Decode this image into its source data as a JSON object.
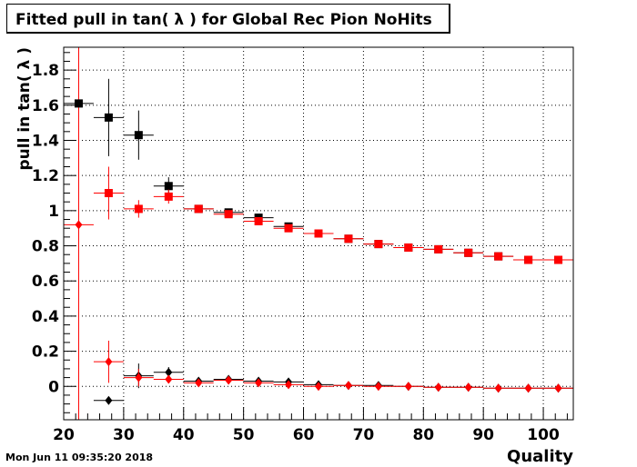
{
  "title": "Fitted pull in tan( λ ) for Global Rec Pion NoHits",
  "timestamp": "Mon Jun 11 09:35:20 2018",
  "chart_data": {
    "type": "scatter",
    "title": "Fitted pull in tan( λ ) for Global Rec Pion NoHits",
    "xlabel": "Quality",
    "ylabel": "pull in tan( λ )",
    "xlim": [
      20,
      105
    ],
    "ylim": [
      -0.19,
      1.93
    ],
    "xticks": [
      20,
      30,
      40,
      50,
      60,
      70,
      80,
      90,
      100
    ],
    "yticks": [
      0,
      0.2,
      0.4,
      0.6,
      0.8,
      1,
      1.2,
      1.4,
      1.6,
      1.8
    ],
    "ytick_labels": [
      "0",
      "0.2",
      "0.4",
      "0.6",
      "0.8",
      "1",
      "1.2",
      "1.4",
      "1.6",
      "1.8"
    ],
    "grid": true,
    "vertical_line": {
      "x": 22.5,
      "color": "#ff0000"
    },
    "bin_halfwidth": 2.5,
    "series": [
      {
        "marker": "square",
        "color": "#000000",
        "points": [
          {
            "x": 22.5,
            "y": 1.61,
            "err": 0
          },
          {
            "x": 27.5,
            "y": 1.53,
            "err": 0.22
          },
          {
            "x": 32.5,
            "y": 1.43,
            "err": 0.14
          },
          {
            "x": 37.5,
            "y": 1.14,
            "err": 0.05
          },
          {
            "x": 42.5,
            "y": 1.01,
            "err": 0.01
          },
          {
            "x": 47.5,
            "y": 0.99,
            "err": 0.01
          },
          {
            "x": 52.5,
            "y": 0.96,
            "err": 0.01
          },
          {
            "x": 57.5,
            "y": 0.91,
            "err": 0.01
          },
          {
            "x": 62.5,
            "y": 0.87,
            "err": 0.01
          },
          {
            "x": 67.5,
            "y": 0.84,
            "err": 0.01
          },
          {
            "x": 72.5,
            "y": 0.81,
            "err": 0.01
          },
          {
            "x": 77.5,
            "y": 0.79,
            "err": 0.01
          },
          {
            "x": 82.5,
            "y": 0.78,
            "err": 0.01
          },
          {
            "x": 87.5,
            "y": 0.76,
            "err": 0.01
          },
          {
            "x": 92.5,
            "y": 0.74,
            "err": 0.01
          },
          {
            "x": 97.5,
            "y": 0.72,
            "err": 0.01
          },
          {
            "x": 102.5,
            "y": 0.72,
            "err": 0.01
          }
        ]
      },
      {
        "marker": "square",
        "color": "#ff0000",
        "points": [
          {
            "x": 27.5,
            "y": 1.1,
            "err": 0.15
          },
          {
            "x": 32.5,
            "y": 1.01,
            "err": 0.05
          },
          {
            "x": 37.5,
            "y": 1.08,
            "err": 0.04
          },
          {
            "x": 42.5,
            "y": 1.01,
            "err": 0.01
          },
          {
            "x": 47.5,
            "y": 0.98,
            "err": 0.01
          },
          {
            "x": 52.5,
            "y": 0.94,
            "err": 0.01
          },
          {
            "x": 57.5,
            "y": 0.9,
            "err": 0.01
          },
          {
            "x": 62.5,
            "y": 0.87,
            "err": 0.01
          },
          {
            "x": 67.5,
            "y": 0.84,
            "err": 0.01
          },
          {
            "x": 72.5,
            "y": 0.81,
            "err": 0.01
          },
          {
            "x": 77.5,
            "y": 0.79,
            "err": 0.01
          },
          {
            "x": 82.5,
            "y": 0.78,
            "err": 0.01
          },
          {
            "x": 87.5,
            "y": 0.76,
            "err": 0.01
          },
          {
            "x": 92.5,
            "y": 0.74,
            "err": 0.01
          },
          {
            "x": 97.5,
            "y": 0.72,
            "err": 0.01
          },
          {
            "x": 102.5,
            "y": 0.72,
            "err": 0.01
          }
        ]
      },
      {
        "marker": "diamond",
        "color": "#000000",
        "points": [
          {
            "x": 27.5,
            "y": -0.08,
            "err": 0
          },
          {
            "x": 32.5,
            "y": 0.06,
            "err": 0.07
          },
          {
            "x": 37.5,
            "y": 0.08,
            "err": 0.03
          },
          {
            "x": 42.5,
            "y": 0.03,
            "err": 0.01
          },
          {
            "x": 47.5,
            "y": 0.04,
            "err": 0.01
          },
          {
            "x": 52.5,
            "y": 0.03,
            "err": 0.01
          },
          {
            "x": 57.5,
            "y": 0.025,
            "err": 0.01
          },
          {
            "x": 62.5,
            "y": 0.01,
            "err": 0.005
          },
          {
            "x": 67.5,
            "y": 0.005,
            "err": 0.005
          },
          {
            "x": 72.5,
            "y": 0.005,
            "err": 0.005
          },
          {
            "x": 77.5,
            "y": 0.0,
            "err": 0.005
          },
          {
            "x": 82.5,
            "y": -0.005,
            "err": 0.005
          },
          {
            "x": 87.5,
            "y": -0.005,
            "err": 0.005
          },
          {
            "x": 92.5,
            "y": -0.01,
            "err": 0.005
          },
          {
            "x": 97.5,
            "y": -0.01,
            "err": 0.005
          },
          {
            "x": 102.5,
            "y": -0.01,
            "err": 0.005
          }
        ]
      },
      {
        "marker": "diamond",
        "color": "#ff0000",
        "points": [
          {
            "x": 22.5,
            "y": 0.92,
            "err": 0
          },
          {
            "x": 27.5,
            "y": 0.14,
            "err": 0.12
          },
          {
            "x": 32.5,
            "y": 0.05,
            "err": 0.05
          },
          {
            "x": 37.5,
            "y": 0.04,
            "err": 0.02
          },
          {
            "x": 42.5,
            "y": 0.02,
            "err": 0.01
          },
          {
            "x": 47.5,
            "y": 0.035,
            "err": 0.01
          },
          {
            "x": 52.5,
            "y": 0.02,
            "err": 0.01
          },
          {
            "x": 57.5,
            "y": 0.01,
            "err": 0.005
          },
          {
            "x": 62.5,
            "y": 0.0,
            "err": 0.005
          },
          {
            "x": 67.5,
            "y": 0.005,
            "err": 0.005
          },
          {
            "x": 72.5,
            "y": 0.0,
            "err": 0.005
          },
          {
            "x": 77.5,
            "y": 0.0,
            "err": 0.005
          },
          {
            "x": 82.5,
            "y": -0.005,
            "err": 0.005
          },
          {
            "x": 87.5,
            "y": -0.005,
            "err": 0.005
          },
          {
            "x": 92.5,
            "y": -0.01,
            "err": 0.005
          },
          {
            "x": 97.5,
            "y": -0.01,
            "err": 0.005
          },
          {
            "x": 102.5,
            "y": -0.01,
            "err": 0.005
          }
        ]
      }
    ]
  }
}
